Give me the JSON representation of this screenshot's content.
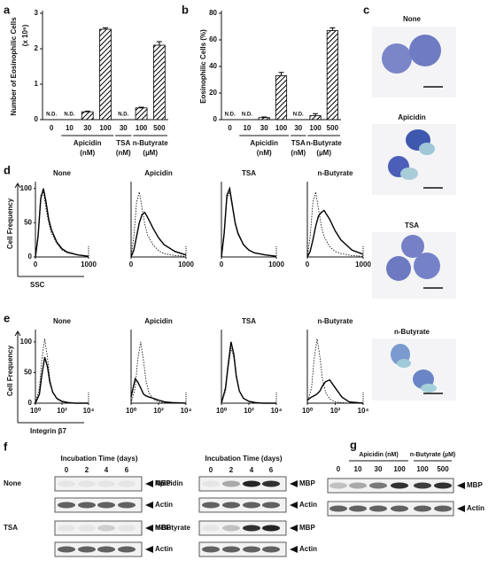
{
  "chart_data": [
    {
      "type": "bar",
      "panel": "a",
      "ylabel": "Number of Eosinophilic Cells",
      "yunit": "(x 10⁶)",
      "categories": [
        0,
        10,
        30,
        100,
        30,
        100,
        500
      ],
      "values": [
        null,
        null,
        0.22,
        2.55,
        null,
        0.33,
        2.1
      ],
      "value_labels": [
        "N.D.",
        "N.D.",
        null,
        null,
        "N.D.",
        null,
        null
      ],
      "errors": [
        null,
        null,
        0.02,
        0.04,
        null,
        0.02,
        0.1
      ],
      "ylim": [
        0,
        3
      ],
      "yticks": [
        0,
        1,
        2,
        3
      ],
      "groups": [
        {
          "name": "Apicidin",
          "unit": "(nM)"
        },
        {
          "name": "TSA",
          "unit": "(nM)"
        },
        {
          "name": "n-Butyrate",
          "unit": "(µM)"
        }
      ]
    },
    {
      "type": "bar",
      "panel": "b",
      "ylabel": "Eosinophilic Cells (%)",
      "categories": [
        0,
        10,
        30,
        100,
        30,
        100,
        500
      ],
      "values": [
        null,
        null,
        1.5,
        33,
        null,
        3,
        67
      ],
      "value_labels": [
        "N.D.",
        "N.D.",
        null,
        null,
        "N.D.",
        null,
        null
      ],
      "errors": [
        null,
        null,
        0.5,
        2.5,
        null,
        1.5,
        2
      ],
      "ylim": [
        0,
        80
      ],
      "yticks": [
        0,
        20,
        40,
        60,
        80
      ],
      "groups": [
        {
          "name": "Apicidin",
          "unit": "(nM)"
        },
        {
          "name": "TSA",
          "unit": "(nM)"
        },
        {
          "name": "n-Butyrate",
          "unit": "(µM)"
        }
      ]
    },
    {
      "type": "line",
      "panel": "d",
      "title": "None",
      "ylabel": "Cell Frequency",
      "xlabel": "SSC",
      "x": [
        0,
        50,
        100,
        150,
        200,
        250,
        300,
        400,
        500,
        600,
        800,
        1000
      ],
      "series": [
        {
          "style": "dotted",
          "values": [
            0,
            35,
            90,
            95,
            70,
            50,
            35,
            20,
            10,
            6,
            3,
            1
          ]
        },
        {
          "style": "solid",
          "values": [
            0,
            30,
            85,
            100,
            80,
            55,
            40,
            22,
            12,
            7,
            3,
            1
          ]
        }
      ],
      "xlim": [
        0,
        1000
      ],
      "xticks": [
        0,
        1000
      ],
      "ylim": [
        0,
        110
      ],
      "yticks": [
        0,
        50,
        100
      ]
    },
    {
      "type": "line",
      "title": "Apicidin",
      "x": [
        0,
        50,
        100,
        150,
        200,
        250,
        300,
        400,
        500,
        600,
        800,
        1000
      ],
      "series": [
        {
          "style": "dotted",
          "values": [
            0,
            30,
            80,
            95,
            72,
            48,
            32,
            18,
            9,
            5,
            2,
            1
          ]
        },
        {
          "style": "solid",
          "values": [
            0,
            10,
            30,
            50,
            62,
            65,
            58,
            42,
            28,
            18,
            8,
            3
          ]
        }
      ],
      "xlim": [
        0,
        1000
      ],
      "xticks": [
        0,
        1000
      ],
      "ylim": [
        0,
        110
      ]
    },
    {
      "type": "line",
      "title": "TSA",
      "x": [
        0,
        50,
        100,
        150,
        200,
        250,
        300,
        400,
        500,
        600,
        800,
        1000
      ],
      "series": [
        {
          "style": "dotted",
          "values": [
            0,
            30,
            85,
            95,
            72,
            48,
            33,
            18,
            10,
            6,
            3,
            1
          ]
        },
        {
          "style": "solid",
          "values": [
            0,
            35,
            90,
            100,
            75,
            50,
            35,
            18,
            10,
            6,
            3,
            1
          ]
        }
      ],
      "xlim": [
        0,
        1000
      ],
      "xticks": [
        0,
        1000
      ],
      "ylim": [
        0,
        110
      ]
    },
    {
      "type": "line",
      "title": "n-Butyrate",
      "x": [
        0,
        50,
        100,
        150,
        200,
        250,
        300,
        400,
        500,
        600,
        800,
        1000
      ],
      "series": [
        {
          "style": "dotted",
          "values": [
            0,
            30,
            80,
            95,
            70,
            45,
            30,
            15,
            8,
            5,
            2,
            1
          ]
        },
        {
          "style": "solid",
          "values": [
            0,
            8,
            25,
            45,
            60,
            65,
            68,
            55,
            38,
            25,
            10,
            4
          ]
        }
      ],
      "xlim": [
        0,
        1000
      ],
      "xticks": [
        0,
        1000
      ],
      "ylim": [
        0,
        110
      ]
    },
    {
      "type": "line",
      "panel": "e",
      "title": "None",
      "ylabel": "Cell Frequency",
      "xlabel": "Integrin β7",
      "xlog": true,
      "x": [
        1,
        2,
        3,
        5,
        8,
        12,
        20,
        40,
        100,
        300,
        1000,
        10000
      ],
      "series": [
        {
          "style": "dotted",
          "values": [
            0,
            25,
            70,
            105,
            75,
            40,
            18,
            7,
            2,
            1,
            0,
            0
          ]
        },
        {
          "style": "solid",
          "values": [
            0,
            15,
            45,
            75,
            60,
            35,
            18,
            8,
            3,
            1,
            0,
            0
          ]
        }
      ],
      "xlim": [
        1,
        10000
      ],
      "xticks": [
        {
          "value": 1,
          "label": "10⁰"
        },
        {
          "value": 100,
          "label": "10²"
        },
        {
          "value": 10000,
          "label": "10⁴"
        }
      ],
      "ylim": [
        0,
        120
      ],
      "yticks": [
        0,
        50,
        100
      ]
    },
    {
      "type": "line",
      "title": "Apicidin",
      "xlog": true,
      "x": [
        1,
        2,
        3,
        5,
        8,
        12,
        20,
        40,
        100,
        300,
        1000,
        10000
      ],
      "series": [
        {
          "style": "dotted",
          "values": [
            0,
            25,
            70,
            100,
            70,
            38,
            17,
            7,
            2,
            1,
            0,
            0
          ]
        },
        {
          "style": "solid",
          "values": [
            10,
            40,
            35,
            25,
            15,
            12,
            10,
            8,
            5,
            2,
            1,
            0
          ]
        }
      ],
      "xlim": [
        1,
        10000
      ],
      "xticks": [
        {
          "value": 1,
          "label": "10⁰"
        },
        {
          "value": 100,
          "label": "10²"
        },
        {
          "value": 10000,
          "label": "10⁴"
        }
      ],
      "ylim": [
        0,
        120
      ]
    },
    {
      "type": "line",
      "title": "TSA",
      "xlog": true,
      "x": [
        1,
        2,
        3,
        5,
        8,
        12,
        20,
        40,
        100,
        300,
        1000,
        10000
      ],
      "series": [
        {
          "style": "dotted",
          "values": [
            0,
            20,
            55,
            90,
            75,
            42,
            20,
            8,
            3,
            1,
            0,
            0
          ]
        },
        {
          "style": "solid",
          "values": [
            0,
            25,
            60,
            100,
            80,
            45,
            20,
            8,
            3,
            1,
            0,
            0
          ]
        }
      ],
      "xlim": [
        1,
        10000
      ],
      "xticks": [
        {
          "value": 1,
          "label": "10⁰"
        },
        {
          "value": 100,
          "label": "10²"
        },
        {
          "value": 10000,
          "label": "10⁴"
        }
      ],
      "ylim": [
        0,
        120
      ]
    },
    {
      "type": "line",
      "title": "n-Butyrate",
      "xlog": true,
      "x": [
        1,
        2,
        3,
        5,
        8,
        12,
        20,
        40,
        100,
        300,
        1000,
        10000
      ],
      "series": [
        {
          "style": "dotted",
          "values": [
            0,
            25,
            70,
            105,
            75,
            40,
            18,
            7,
            2,
            1,
            0,
            0
          ]
        },
        {
          "style": "solid",
          "values": [
            5,
            10,
            12,
            15,
            20,
            28,
            35,
            38,
            25,
            10,
            2,
            0
          ]
        }
      ],
      "xlim": [
        1,
        10000
      ],
      "xticks": [
        {
          "value": 1,
          "label": "10⁰"
        },
        {
          "value": 100,
          "label": "10²"
        },
        {
          "value": 10000,
          "label": "10⁴"
        }
      ],
      "ylim": [
        0,
        120
      ]
    }
  ],
  "micrographs": {
    "panel": "c",
    "labels": [
      "None",
      "Apicidin",
      "TSA",
      "n-Butyrate"
    ]
  },
  "blots_f": {
    "panel": "f",
    "title": "Incubation Time (days)",
    "lanes": [
      0,
      2,
      4,
      6
    ],
    "sets": [
      {
        "name": "None",
        "rows": [
          {
            "label": "MBP",
            "intensity": [
              0.05,
              0.05,
              0.05,
              0.05
            ]
          },
          {
            "label": "Actin",
            "intensity": [
              0.6,
              0.6,
              0.6,
              0.6
            ]
          }
        ]
      },
      {
        "name": "TSA",
        "rows": [
          {
            "label": "MBP",
            "intensity": [
              0.05,
              0.05,
              0.15,
              0.05
            ]
          },
          {
            "label": "Actin",
            "intensity": [
              0.6,
              0.6,
              0.6,
              0.6
            ]
          }
        ]
      },
      {
        "name": "Apicidin",
        "rows": [
          {
            "label": "MBP",
            "intensity": [
              0.05,
              0.3,
              0.85,
              0.8
            ]
          },
          {
            "label": "Actin",
            "intensity": [
              0.6,
              0.6,
              0.6,
              0.6
            ]
          }
        ]
      },
      {
        "name": "n-Butyrate",
        "rows": [
          {
            "label": "MBP",
            "intensity": [
              0.05,
              0.2,
              0.8,
              0.85
            ]
          },
          {
            "label": "Actin",
            "intensity": [
              0.6,
              0.6,
              0.6,
              0.6
            ]
          }
        ]
      }
    ]
  },
  "blots_g": {
    "panel": "g",
    "groups": [
      "Apicidin (nM)",
      "n-Butyrate (µM)"
    ],
    "lanes": [
      0,
      10,
      30,
      100,
      100,
      500
    ],
    "rows": [
      {
        "label": "MBP",
        "intensity": [
          0.2,
          0.3,
          0.5,
          0.8,
          0.75,
          0.8
        ]
      },
      {
        "label": "Actin",
        "intensity": [
          0.6,
          0.6,
          0.6,
          0.6,
          0.6,
          0.6
        ]
      }
    ]
  }
}
